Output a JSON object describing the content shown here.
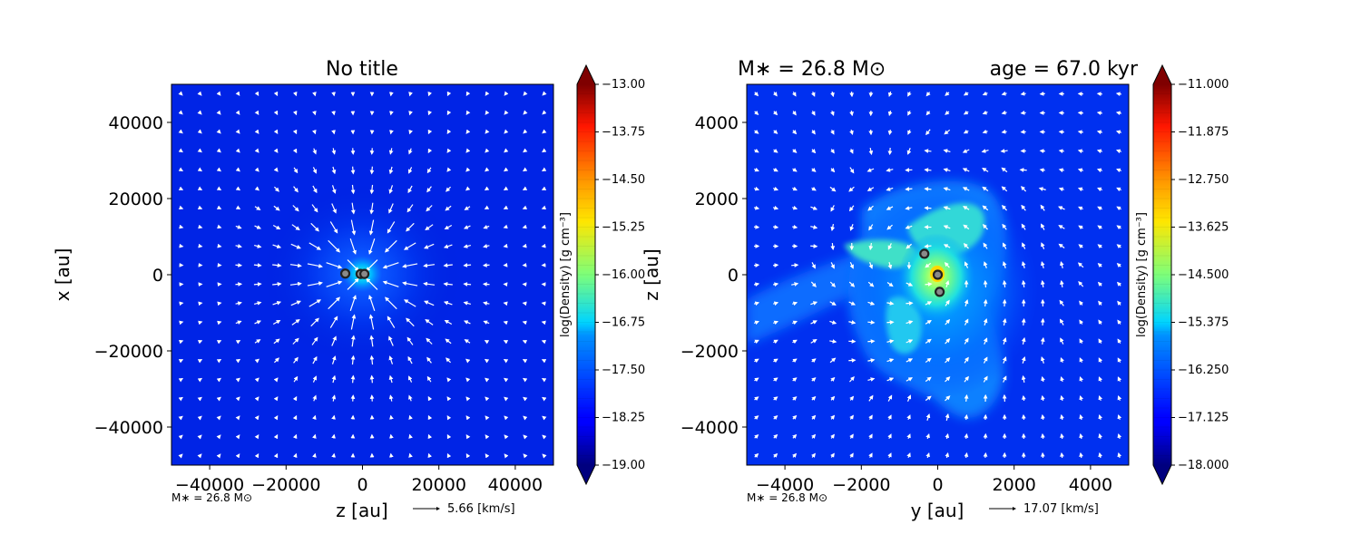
{
  "chart_data": [
    {
      "type": "heatmap",
      "title": "No title",
      "xlabel": "z [au]",
      "ylabel": "x [au]",
      "xlim": [
        -50000,
        50000
      ],
      "ylim": [
        -50000,
        50000
      ],
      "xticks": [
        "−40000",
        "−20000",
        "0",
        "20000",
        "40000"
      ],
      "xtick_values": [
        -40000,
        -20000,
        0,
        20000,
        40000
      ],
      "yticks": [
        "−40000",
        "−20000",
        "0",
        "20000",
        "40000"
      ],
      "ytick_values": [
        -40000,
        -20000,
        0,
        20000,
        40000
      ],
      "colorbar": {
        "label": "log(Density) [g cm⁻³]",
        "ticks": [
          "−13.00",
          "−13.75",
          "−14.50",
          "−15.25",
          "−16.00",
          "−16.75",
          "−17.50",
          "−18.25",
          "−19.00"
        ],
        "tick_values": [
          -13.0,
          -13.75,
          -14.5,
          -15.25,
          -16.0,
          -16.75,
          -17.5,
          -18.25,
          -19.0
        ],
        "range": [
          -19.0,
          -13.0
        ],
        "colormap": "jet"
      },
      "sinks": [
        {
          "x": -4500,
          "y": 300
        },
        {
          "x": -500,
          "y": 200
        },
        {
          "x": 500,
          "y": 200
        }
      ],
      "velocity_pattern": "radial infall toward center",
      "annotation_mass": "M∗ = 26.8 M⊙",
      "velocity_key": "5.66 [km/s]"
    },
    {
      "type": "heatmap",
      "title_left": "M∗ = 26.8 M⊙",
      "title_right": "age = 67.0 kyr",
      "xlabel": "y [au]",
      "ylabel": "z [au]",
      "xlim": [
        -5000,
        5000
      ],
      "ylim": [
        -5000,
        5000
      ],
      "xticks": [
        "−4000",
        "−2000",
        "0",
        "2000",
        "4000"
      ],
      "xtick_values": [
        -4000,
        -2000,
        0,
        2000,
        4000
      ],
      "yticks": [
        "−4000",
        "−2000",
        "0",
        "2000",
        "4000"
      ],
      "ytick_values": [
        -4000,
        -2000,
        0,
        2000,
        4000
      ],
      "colorbar": {
        "label": "log(Density) [g cm⁻³]",
        "ticks": [
          "−11.000",
          "−11.875",
          "−12.750",
          "−13.625",
          "−14.500",
          "−15.375",
          "−16.250",
          "−17.125",
          "−18.000"
        ],
        "tick_values": [
          -11.0,
          -11.875,
          -12.75,
          -13.625,
          -14.5,
          -15.375,
          -16.25,
          -17.125,
          -18.0
        ],
        "range": [
          -18.0,
          -11.0
        ],
        "colormap": "jet"
      },
      "sinks": [
        {
          "x": -350,
          "y": 550
        },
        {
          "x": 0,
          "y": 0
        },
        {
          "x": 50,
          "y": -450
        }
      ],
      "velocity_pattern": "rotating disk with filaments",
      "annotation_mass": "M∗ = 26.8 M⊙",
      "velocity_key": "17.07 [km/s]"
    }
  ]
}
